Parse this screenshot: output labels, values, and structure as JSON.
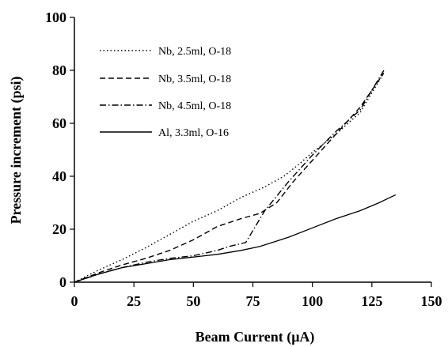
{
  "chart_data": {
    "type": "line",
    "xlabel": "Beam Current (μA)",
    "ylabel": "Pressure increment (psi)",
    "xlim": [
      0,
      150
    ],
    "ylim": [
      0,
      100
    ],
    "xticks": [
      0,
      25,
      50,
      75,
      100,
      125,
      150
    ],
    "yticks": [
      0,
      20,
      40,
      60,
      80,
      100
    ],
    "xtick_labels": [
      "0",
      "25",
      "50",
      "75",
      "100",
      "125",
      "150"
    ],
    "ytick_labels": [
      "0",
      "20",
      "40",
      "60",
      "80",
      "100"
    ],
    "grid": false,
    "legend_position": "top-left",
    "series": [
      {
        "name": "Nb, 2.5ml, O-18",
        "style": "dotted",
        "x": [
          0,
          10,
          20,
          30,
          40,
          50,
          60,
          70,
          80,
          88,
          95,
          100,
          110,
          120,
          130
        ],
        "y": [
          0,
          4.5,
          8.5,
          13,
          18,
          23,
          27,
          32,
          36,
          40,
          45,
          49,
          56,
          64,
          79
        ]
      },
      {
        "name": "Nb, 3.5ml, O-18",
        "style": "dashed",
        "x": [
          0,
          10,
          20,
          30,
          40,
          50,
          60,
          70,
          78,
          85,
          92,
          100,
          110,
          120,
          130
        ],
        "y": [
          0,
          3.5,
          6.5,
          9,
          12,
          16,
          21,
          24,
          26,
          30,
          38,
          46,
          56,
          66,
          79
        ]
      },
      {
        "name": "Nb, 4.5ml, O-18",
        "style": "dashdot",
        "x": [
          0,
          10,
          20,
          30,
          40,
          50,
          60,
          65,
          72,
          80,
          90,
          100,
          110,
          120,
          130
        ],
        "y": [
          0,
          3,
          5.5,
          7.5,
          9,
          10,
          12,
          13.5,
          15,
          27,
          38,
          48,
          57,
          65,
          80
        ]
      },
      {
        "name": "Al, 3.3ml, O-16",
        "style": "solid",
        "x": [
          0,
          10,
          20,
          30,
          40,
          50,
          60,
          70,
          78,
          90,
          100,
          110,
          120,
          128,
          135
        ],
        "y": [
          0,
          3,
          5.5,
          7,
          8.5,
          9.5,
          10.5,
          12,
          13.5,
          17,
          20.5,
          24,
          27,
          30,
          33
        ]
      }
    ]
  }
}
